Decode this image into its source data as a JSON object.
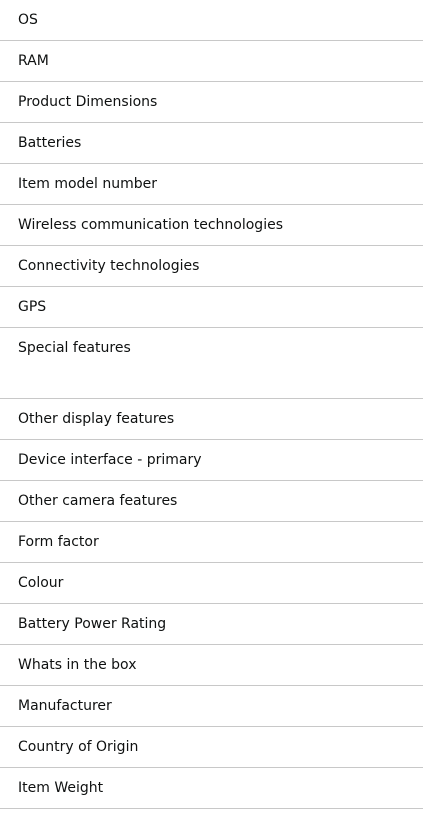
{
  "specs": [
    {
      "label": "OS"
    },
    {
      "label": "RAM"
    },
    {
      "label": "Product Dimensions"
    },
    {
      "label": "Batteries"
    },
    {
      "label": "Item model number"
    },
    {
      "label": "Wireless communication technologies"
    },
    {
      "label": "Connectivity technologies"
    },
    {
      "label": "GPS"
    },
    {
      "label": "Special features"
    },
    {
      "label": "Other display features"
    },
    {
      "label": "Device interface - primary"
    },
    {
      "label": "Other camera features"
    },
    {
      "label": "Form factor"
    },
    {
      "label": "Colour"
    },
    {
      "label": "Battery Power Rating"
    },
    {
      "label": "Whats in the box"
    },
    {
      "label": "Manufacturer"
    },
    {
      "label": "Country of Origin"
    },
    {
      "label": "Item Weight"
    }
  ]
}
